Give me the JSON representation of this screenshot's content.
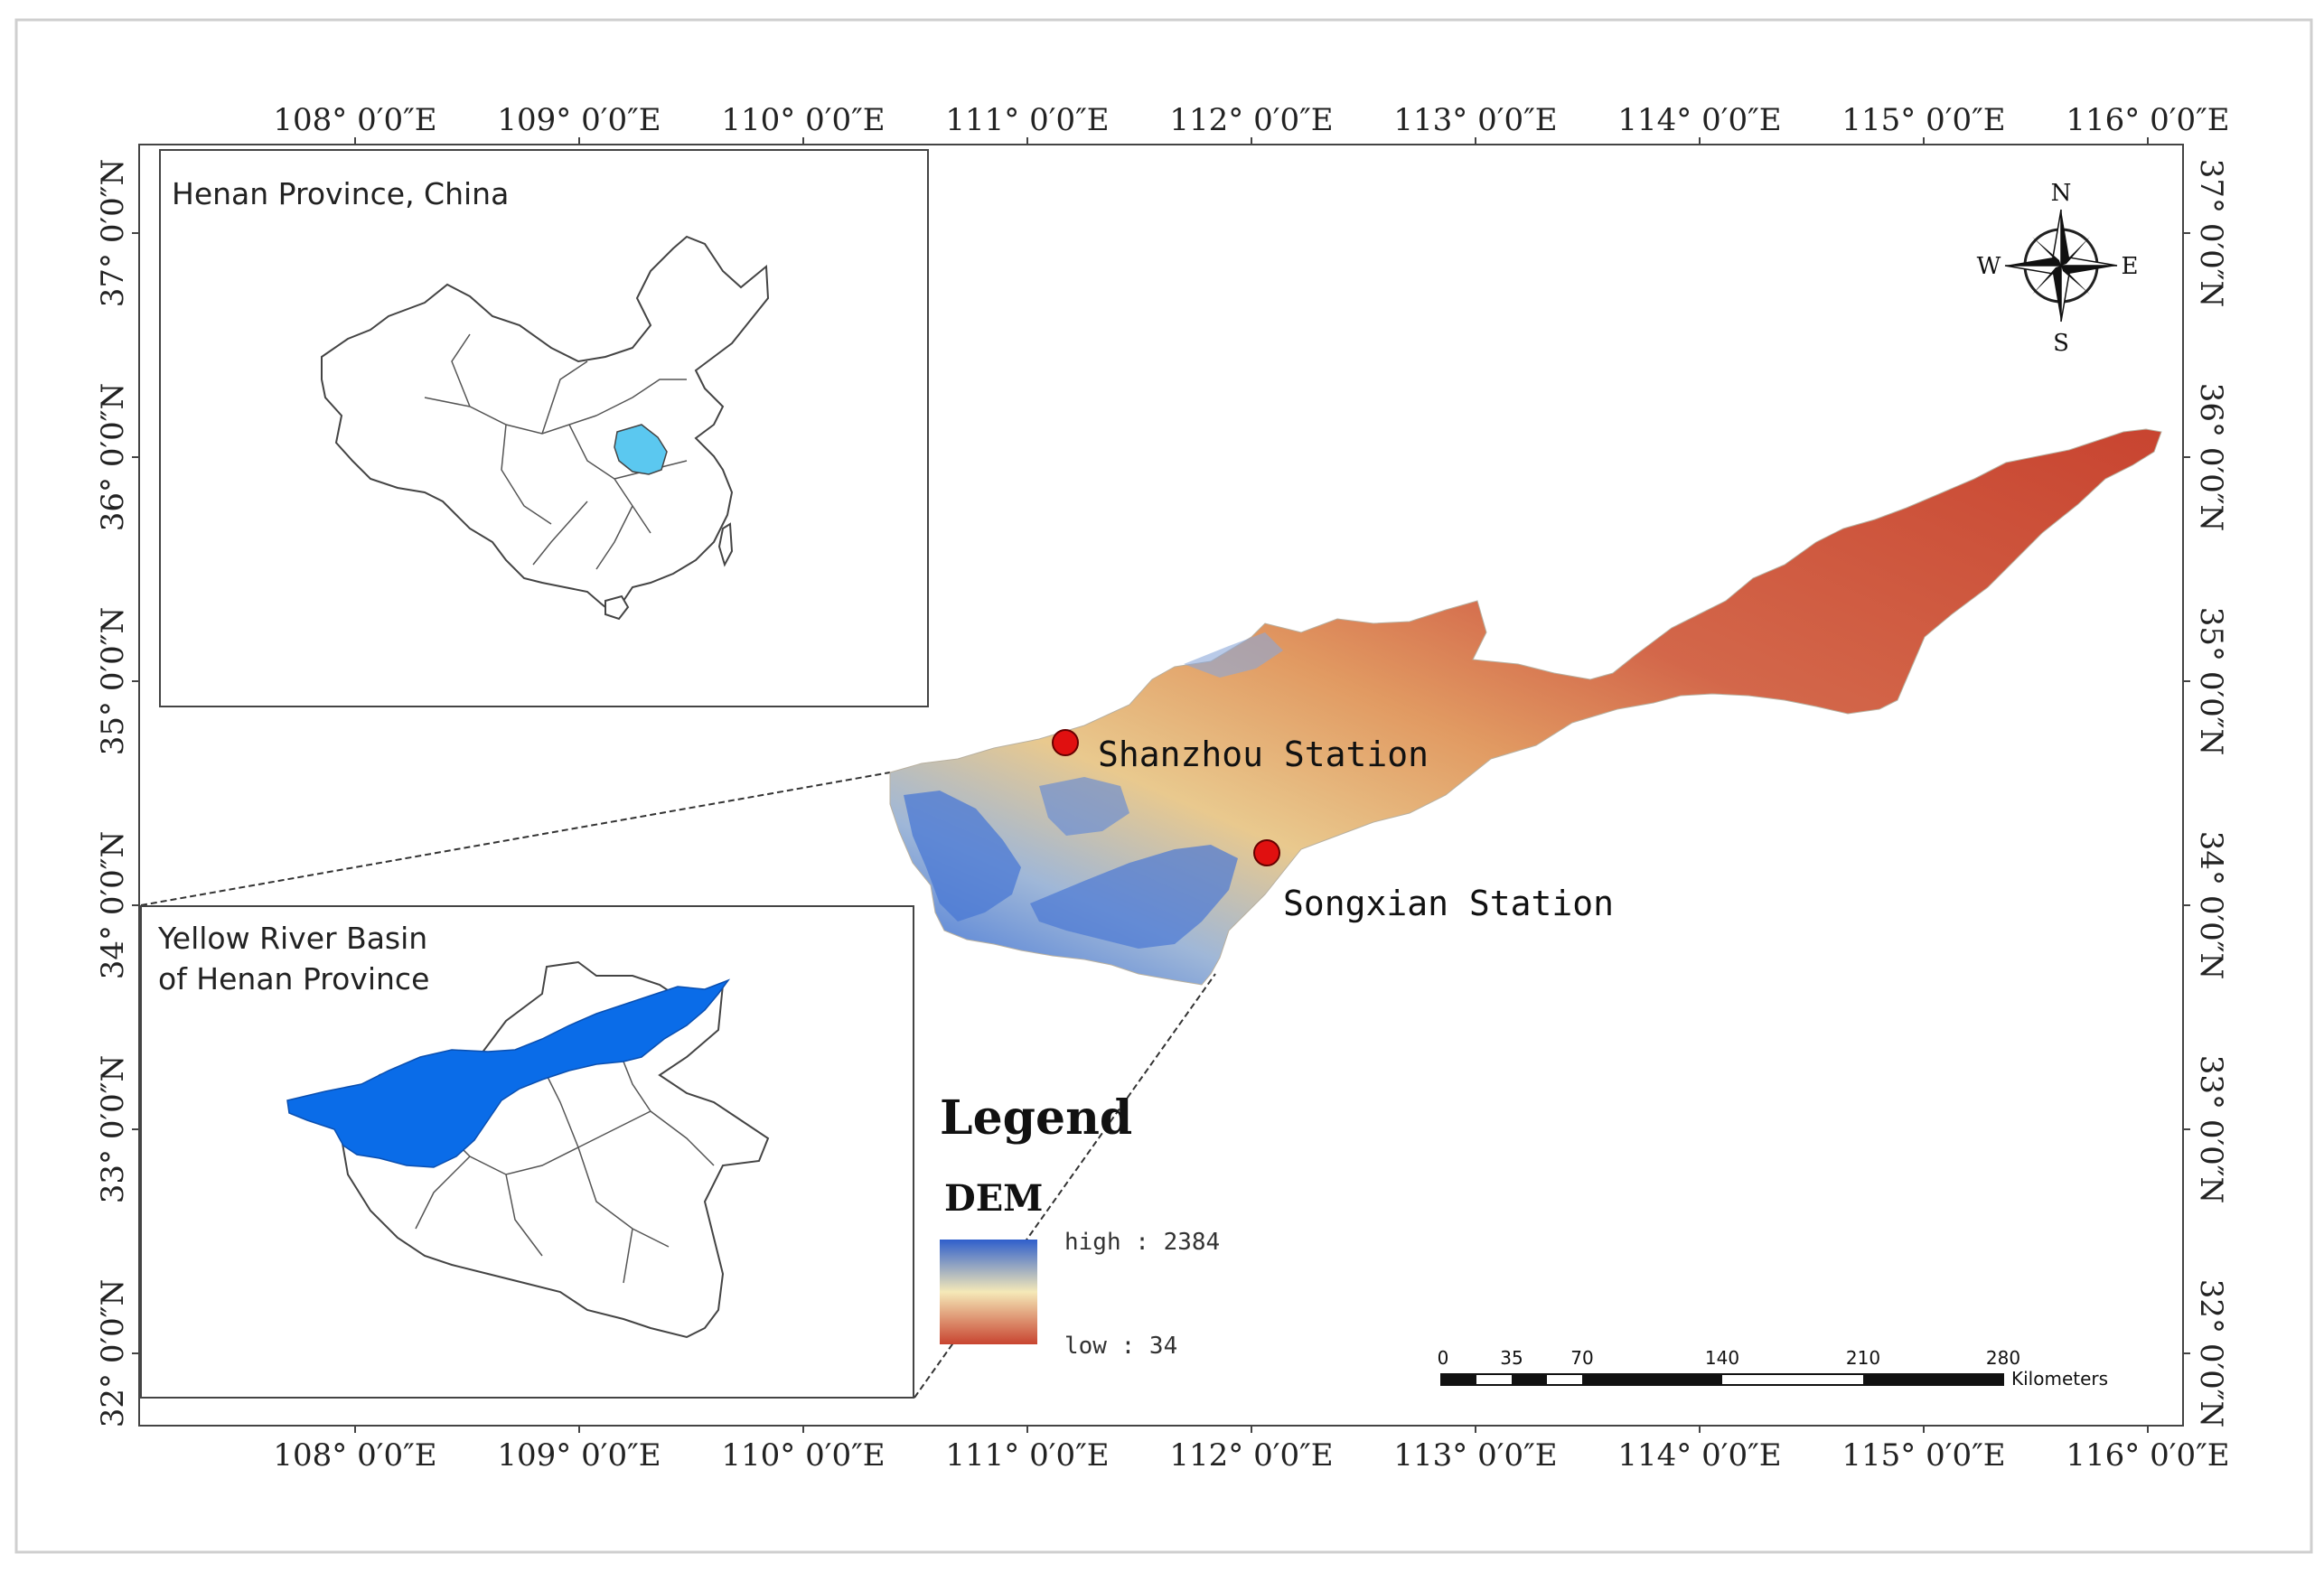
{
  "map": {
    "top_lon_labels": [
      "108° 0′0″E",
      "109° 0′0″E",
      "110° 0′0″E",
      "111° 0′0″E",
      "112° 0′0″E",
      "113° 0′0″E",
      "114° 0′0″E",
      "115° 0′0″E",
      "116° 0′0″E"
    ],
    "bottom_lon_labels": [
      "108° 0′0″E",
      "109° 0′0″E",
      "110° 0′0″E",
      "111° 0′0″E",
      "112° 0′0″E",
      "113° 0′0″E",
      "114° 0′0″E",
      "115° 0′0″E",
      "116° 0′0″E"
    ],
    "lat_labels": [
      "37° 0′0″N",
      "36° 0′0″N",
      "35° 0′0″N",
      "34° 0′0″N",
      "33° 0′0″N",
      "32° 0′0″N"
    ],
    "inset_china_title": "Henan Province, China",
    "inset_basin_title_line1": "Yellow River Basin",
    "inset_basin_title_line2": "of Henan Province",
    "stations": [
      {
        "name": "Shanzhou Station"
      },
      {
        "name": "Songxian Station"
      }
    ],
    "legend": {
      "title": "Legend",
      "layer": "DEM",
      "high_label": "high : 2384",
      "low_label": "low : 34"
    },
    "scale_bar": {
      "ticks": [
        "0",
        "35",
        "70",
        "140",
        "210",
        "280"
      ],
      "unit": "Kilometers"
    },
    "compass": {
      "n": "N",
      "s": "S",
      "e": "E",
      "w": "W"
    },
    "colors": {
      "henan_highlight": "#5bc8f0",
      "basin_fill": "#0a6ce8",
      "dem_high": "#2f5fcc",
      "dem_mid": "#f5e9b8",
      "dem_low": "#c84430",
      "station": "#e01010"
    }
  }
}
